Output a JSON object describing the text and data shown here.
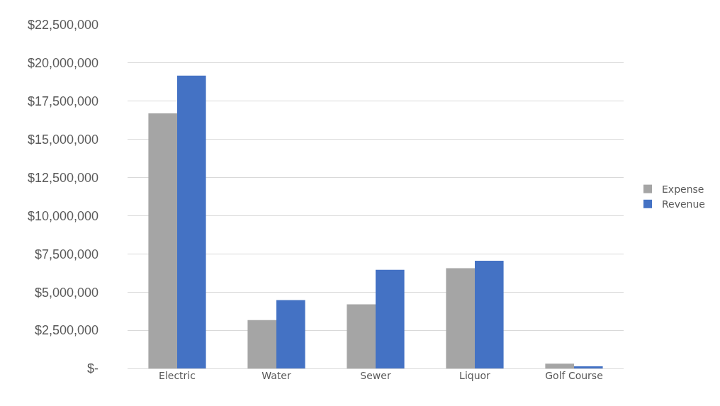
{
  "chart_data": {
    "type": "bar",
    "categories": [
      "Electric",
      "Water",
      "Sewer",
      "Liquor",
      "Golf Course"
    ],
    "series": [
      {
        "name": "Expense",
        "color": "#a5a5a5",
        "values": [
          16700000,
          3170000,
          4200000,
          6570000,
          310000
        ]
      },
      {
        "name": "Revenue",
        "color": "#4472c4",
        "values": [
          19170000,
          4480000,
          6460000,
          7050000,
          140000
        ]
      }
    ],
    "ylim": [
      0,
      22500000
    ],
    "yticks": [
      {
        "value": 0,
        "label": "$-"
      },
      {
        "value": 2500000,
        "label": "$2,500,000"
      },
      {
        "value": 5000000,
        "label": "$5,000,000"
      },
      {
        "value": 7500000,
        "label": "$7,500,000"
      },
      {
        "value": 10000000,
        "label": "$10,000,000"
      },
      {
        "value": 12500000,
        "label": "$12,500,000"
      },
      {
        "value": 15000000,
        "label": "$15,000,000"
      },
      {
        "value": 17500000,
        "label": "$17,500,000"
      },
      {
        "value": 20000000,
        "label": "$20,000,000"
      },
      {
        "value": 22500000,
        "label": "$22,500,000"
      }
    ],
    "grid": "y",
    "legend": "right"
  }
}
